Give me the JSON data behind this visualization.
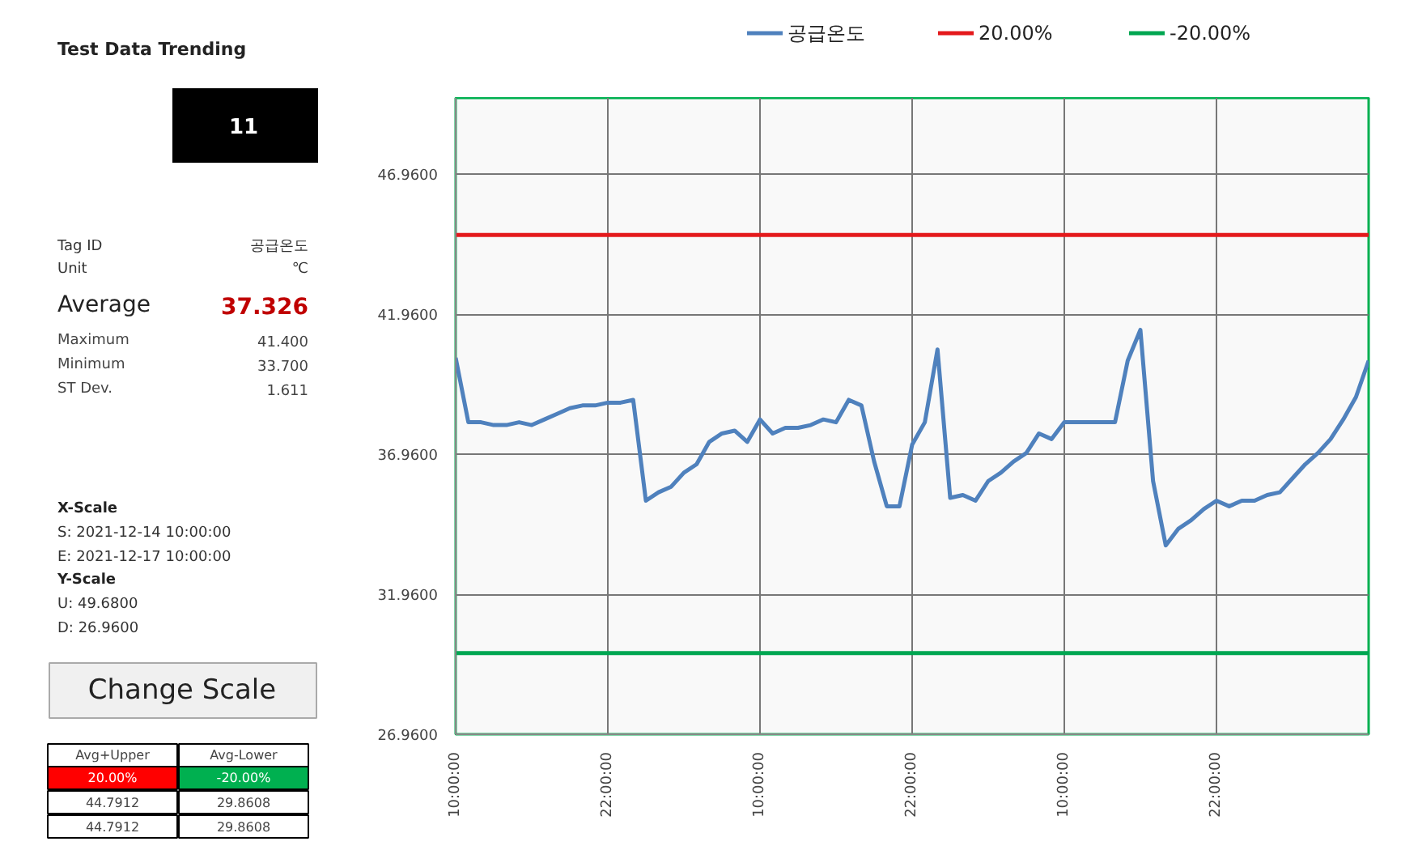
{
  "chart_data": {
    "type": "line",
    "title": "Test Data Trending",
    "annotations": [
      "11",
      "Tag ID",
      "공급온도",
      "Unit",
      "℃",
      "Average",
      "37.326",
      "Maximum",
      "41.400",
      "Minimum",
      "33.700",
      "ST Dev.",
      "1.611",
      "X-Scale",
      "S:  2021-12-14 10:00:00",
      "E:  2021-12-17 10:00:00",
      "Y-Scale",
      "U: 49.6800",
      "D: 26.9600",
      "Change Scale",
      "Avg+Upper",
      "Avg-Lower",
      "20.00%",
      "-20.00%",
      "44.7912",
      "29.8608",
      "44.7912",
      "29.8608"
    ],
    "x": [
      "2021-12-14T10:00",
      "2021-12-14T11:00",
      "2021-12-14T12:00",
      "2021-12-14T13:00",
      "2021-12-14T14:00",
      "2021-12-14T15:00",
      "2021-12-14T16:00",
      "2021-12-14T17:00",
      "2021-12-14T18:00",
      "2021-12-14T19:00",
      "2021-12-14T20:00",
      "2021-12-14T21:00",
      "2021-12-14T22:00",
      "2021-12-14T23:00",
      "2021-12-15T00:00",
      "2021-12-15T01:00",
      "2021-12-15T02:00",
      "2021-12-15T03:00",
      "2021-12-15T04:00",
      "2021-12-15T05:00",
      "2021-12-15T06:00",
      "2021-12-15T07:00",
      "2021-12-15T08:00",
      "2021-12-15T09:00",
      "2021-12-15T10:00",
      "2021-12-15T11:00",
      "2021-12-15T12:00",
      "2021-12-15T13:00",
      "2021-12-15T14:00",
      "2021-12-15T15:00",
      "2021-12-15T16:00",
      "2021-12-15T17:00",
      "2021-12-15T18:00",
      "2021-12-15T19:00",
      "2021-12-15T20:00",
      "2021-12-15T21:00",
      "2021-12-15T22:00",
      "2021-12-15T23:00",
      "2021-12-16T00:00",
      "2021-12-16T01:00",
      "2021-12-16T02:00",
      "2021-12-16T03:00",
      "2021-12-16T04:00",
      "2021-12-16T05:00",
      "2021-12-16T06:00",
      "2021-12-16T07:00",
      "2021-12-16T08:00",
      "2021-12-16T09:00",
      "2021-12-16T10:00",
      "2021-12-16T11:00",
      "2021-12-16T12:00",
      "2021-12-16T13:00",
      "2021-12-16T14:00",
      "2021-12-16T15:00",
      "2021-12-16T16:00",
      "2021-12-16T17:00",
      "2021-12-16T18:00",
      "2021-12-16T19:00",
      "2021-12-16T20:00",
      "2021-12-16T21:00",
      "2021-12-16T22:00",
      "2021-12-16T23:00",
      "2021-12-17T00:00",
      "2021-12-17T01:00",
      "2021-12-17T02:00",
      "2021-12-17T03:00",
      "2021-12-17T04:00",
      "2021-12-17T05:00",
      "2021-12-17T06:00",
      "2021-12-17T07:00",
      "2021-12-17T08:00",
      "2021-12-17T09:00",
      "2021-12-17T10:00"
    ],
    "series": [
      {
        "name": "공급온도",
        "color": "#4f81bd",
        "values": [
          40.4,
          38.1,
          38.1,
          38.0,
          38.0,
          38.1,
          38.0,
          38.2,
          38.4,
          38.6,
          38.7,
          38.7,
          38.8,
          38.8,
          38.9,
          35.3,
          35.6,
          35.8,
          36.3,
          36.6,
          37.4,
          37.7,
          37.8,
          37.4,
          38.2,
          37.7,
          37.9,
          37.9,
          38.0,
          38.2,
          38.1,
          38.9,
          38.7,
          36.7,
          35.1,
          35.1,
          37.3,
          38.1,
          40.7,
          35.4,
          35.5,
          35.3,
          36.0,
          36.3,
          36.7,
          37.0,
          37.7,
          37.5,
          38.1,
          38.1,
          38.1,
          38.1,
          38.1,
          40.3,
          41.4,
          36.0,
          33.7,
          34.3,
          34.6,
          35.0,
          35.3,
          35.1,
          35.3,
          35.3,
          35.5,
          35.6,
          36.1,
          36.6,
          37.0,
          37.5,
          38.2,
          39.0,
          40.3
        ]
      },
      {
        "name": "20.00%",
        "color": "#e41a1c",
        "x": [
          "2021-12-14T10:00",
          "2021-12-17T10:00"
        ],
        "values": [
          44.7912,
          44.7912
        ]
      },
      {
        "name": "-20.00%",
        "color": "#00a651",
        "x": [
          "2021-12-14T10:00",
          "2021-12-17T10:00"
        ],
        "values": [
          29.8608,
          29.8608
        ]
      }
    ],
    "xlim": [
      "2021-12-14T10:00",
      "2021-12-17T10:00"
    ],
    "xticks": [
      {
        "value": "2021-12-14T10:00",
        "label": "10:00:00"
      },
      {
        "value": "2021-12-14T22:00",
        "label": "22:00:00"
      },
      {
        "value": "2021-12-15T10:00",
        "label": "10:00:00"
      },
      {
        "value": "2021-12-15T22:00",
        "label": "22:00:00"
      },
      {
        "value": "2021-12-16T10:00",
        "label": "10:00:00"
      },
      {
        "value": "2021-12-16T22:00",
        "label": "22:00:00"
      },
      {
        "value": "2021-12-17T10:00",
        "label": null
      }
    ],
    "ylim": [
      26.96,
      49.68
    ],
    "yticks": [
      {
        "value": 26.96,
        "label": "26.9600"
      },
      {
        "value": 31.96,
        "label": "31.9600"
      },
      {
        "value": 36.96,
        "label": "36.9600"
      },
      {
        "value": 41.96,
        "label": "41.9600"
      },
      {
        "value": 46.96,
        "label": "46.9600"
      }
    ],
    "grid": true,
    "legend": "top",
    "marker": "none",
    "line_style": "solid"
  }
}
